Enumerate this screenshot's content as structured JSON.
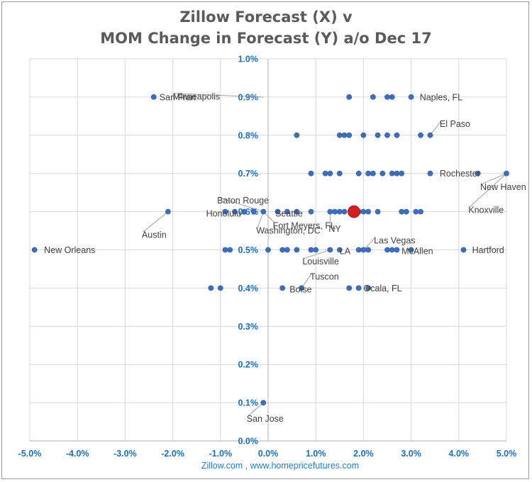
{
  "title_line1": "Zillow Forecast (X) v",
  "title_line2": "MOM Change in Forecast (Y) a/o Dec 17",
  "footer": "Zillow.com ,  www.homepricefutures.com",
  "chart_data": {
    "type": "scatter",
    "xlabel": "",
    "ylabel": "",
    "xlim": [
      -5.0,
      5.0
    ],
    "ylim": [
      0.0,
      1.0
    ],
    "x_ticks": [
      -5,
      -4,
      -3,
      -2,
      -1,
      0,
      1,
      2,
      3,
      4,
      5
    ],
    "y_ticks": [
      0.0,
      0.1,
      0.2,
      0.3,
      0.4,
      0.5,
      0.6,
      0.7,
      0.8,
      0.9,
      1.0
    ],
    "x_tick_labels": [
      "-5.0%",
      "-4.0%",
      "-3.0%",
      "-2.0%",
      "-1.0%",
      "0.0%",
      "1.0%",
      "2.0%",
      "3.0%",
      "4.0%",
      "5.0%"
    ],
    "y_tick_labels": [
      "0.0%",
      "0.1%",
      "0.2%",
      "0.3%",
      "0.4%",
      "0.5%",
      "0.6%",
      "0.7%",
      "0.8%",
      "0.9%",
      "1.0%"
    ],
    "grid": true,
    "colors": {
      "point": "#3f6fba",
      "highlight": "#d42020",
      "tick_label": "#1a6fc0",
      "grid": "#d9d9d9",
      "label": "#404040"
    },
    "highlight_point": {
      "x": 1.8,
      "y": 0.6
    },
    "points": [
      {
        "x": -2.4,
        "y": 0.9
      },
      {
        "x": 1.7,
        "y": 0.9
      },
      {
        "x": 2.2,
        "y": 0.9
      },
      {
        "x": 2.5,
        "y": 0.9
      },
      {
        "x": 2.6,
        "y": 0.9
      },
      {
        "x": 3.0,
        "y": 0.9
      },
      {
        "x": 0.6,
        "y": 0.8
      },
      {
        "x": 1.5,
        "y": 0.8
      },
      {
        "x": 1.6,
        "y": 0.8
      },
      {
        "x": 1.7,
        "y": 0.8
      },
      {
        "x": 2.0,
        "y": 0.8
      },
      {
        "x": 2.3,
        "y": 0.8
      },
      {
        "x": 2.5,
        "y": 0.8
      },
      {
        "x": 2.7,
        "y": 0.8
      },
      {
        "x": 3.2,
        "y": 0.8
      },
      {
        "x": 3.4,
        "y": 0.8
      },
      {
        "x": 0.9,
        "y": 0.7
      },
      {
        "x": 1.2,
        "y": 0.7
      },
      {
        "x": 1.3,
        "y": 0.7
      },
      {
        "x": 1.5,
        "y": 0.7
      },
      {
        "x": 1.9,
        "y": 0.7
      },
      {
        "x": 2.1,
        "y": 0.7
      },
      {
        "x": 2.2,
        "y": 0.7
      },
      {
        "x": 2.4,
        "y": 0.7
      },
      {
        "x": 2.6,
        "y": 0.7
      },
      {
        "x": 2.7,
        "y": 0.7
      },
      {
        "x": 2.8,
        "y": 0.7
      },
      {
        "x": 3.4,
        "y": 0.7
      },
      {
        "x": 4.4,
        "y": 0.7
      },
      {
        "x": 5.0,
        "y": 0.7
      },
      {
        "x": -2.1,
        "y": 0.6
      },
      {
        "x": -0.9,
        "y": 0.6
      },
      {
        "x": -0.7,
        "y": 0.6
      },
      {
        "x": -0.5,
        "y": 0.6
      },
      {
        "x": -0.3,
        "y": 0.6
      },
      {
        "x": -0.1,
        "y": 0.6
      },
      {
        "x": 0.2,
        "y": 0.6
      },
      {
        "x": 0.4,
        "y": 0.6
      },
      {
        "x": 0.6,
        "y": 0.6
      },
      {
        "x": 0.9,
        "y": 0.6
      },
      {
        "x": 1.3,
        "y": 0.6
      },
      {
        "x": 1.4,
        "y": 0.6
      },
      {
        "x": 1.5,
        "y": 0.6
      },
      {
        "x": 1.6,
        "y": 0.6
      },
      {
        "x": 1.9,
        "y": 0.6
      },
      {
        "x": 2.0,
        "y": 0.6
      },
      {
        "x": 2.1,
        "y": 0.6
      },
      {
        "x": 2.3,
        "y": 0.6
      },
      {
        "x": 2.8,
        "y": 0.6
      },
      {
        "x": 2.9,
        "y": 0.6
      },
      {
        "x": 3.1,
        "y": 0.6
      },
      {
        "x": 3.2,
        "y": 0.6
      },
      {
        "x": -4.9,
        "y": 0.5
      },
      {
        "x": -0.9,
        "y": 0.5
      },
      {
        "x": -0.8,
        "y": 0.5
      },
      {
        "x": 0.0,
        "y": 0.5
      },
      {
        "x": 0.3,
        "y": 0.5
      },
      {
        "x": 0.4,
        "y": 0.5
      },
      {
        "x": 0.6,
        "y": 0.5
      },
      {
        "x": 0.9,
        "y": 0.5
      },
      {
        "x": 1.0,
        "y": 0.5
      },
      {
        "x": 1.3,
        "y": 0.5
      },
      {
        "x": 1.5,
        "y": 0.5
      },
      {
        "x": 1.9,
        "y": 0.5
      },
      {
        "x": 2.0,
        "y": 0.5
      },
      {
        "x": 2.1,
        "y": 0.5
      },
      {
        "x": 2.5,
        "y": 0.5
      },
      {
        "x": 2.6,
        "y": 0.5
      },
      {
        "x": 2.7,
        "y": 0.5
      },
      {
        "x": 3.0,
        "y": 0.5
      },
      {
        "x": 4.1,
        "y": 0.5
      },
      {
        "x": -1.2,
        "y": 0.4
      },
      {
        "x": -1.0,
        "y": 0.4
      },
      {
        "x": 0.3,
        "y": 0.4
      },
      {
        "x": 0.7,
        "y": 0.4
      },
      {
        "x": 1.7,
        "y": 0.4
      },
      {
        "x": 1.9,
        "y": 0.4
      },
      {
        "x": 2.1,
        "y": 0.4
      },
      {
        "x": -0.1,
        "y": 0.1
      }
    ],
    "annotations": [
      {
        "text": "San Fran",
        "x": -2.4,
        "y": 0.9,
        "label_x": -2.28,
        "label_y": 0.9,
        "anchor": "start",
        "leader": false
      },
      {
        "text": "Minneapolis",
        "x": -0.1,
        "y": 0.9,
        "label_x": -2.0,
        "label_y": 0.902,
        "anchor": "start",
        "leader": true
      },
      {
        "text": "Naples, FL",
        "x": 3.0,
        "y": 0.9,
        "label_x": 3.18,
        "label_y": 0.9,
        "anchor": "start",
        "leader": false
      },
      {
        "text": "El Paso",
        "x": 3.4,
        "y": 0.8,
        "label_x": 3.6,
        "label_y": 0.83,
        "anchor": "start",
        "leader": true
      },
      {
        "text": "Rochester",
        "x": 4.4,
        "y": 0.7,
        "label_x": 3.6,
        "label_y": 0.7,
        "anchor": "start",
        "leader": false
      },
      {
        "text": "New Haven",
        "x": 5.0,
        "y": 0.7,
        "label_x": 4.45,
        "label_y": 0.665,
        "anchor": "start",
        "leader": true
      },
      {
        "text": "Knoxville",
        "x": 5.0,
        "y": 0.7,
        "label_x": 4.2,
        "label_y": 0.605,
        "anchor": "start",
        "leader": true
      },
      {
        "text": "Baton Rouge",
        "x": -0.1,
        "y": 0.6,
        "label_x": -1.07,
        "label_y": 0.63,
        "anchor": "start",
        "leader": true
      },
      {
        "text": "Honolulu",
        "x": -0.9,
        "y": 0.6,
        "label_x": -1.3,
        "label_y": 0.596,
        "anchor": "start",
        "leader": false
      },
      {
        "text": "Seattle",
        "x": -0.3,
        "y": 0.6,
        "label_x": 0.15,
        "label_y": 0.596,
        "anchor": "start",
        "leader": false
      },
      {
        "text": "Fort Meyers, FL",
        "x": -0.1,
        "y": 0.6,
        "label_x": 0.1,
        "label_y": 0.564,
        "anchor": "start",
        "leader": true
      },
      {
        "text": "Washington, DC",
        "x": -0.1,
        "y": 0.6,
        "label_x": -0.25,
        "label_y": 0.551,
        "anchor": "start",
        "leader": true
      },
      {
        "text": "NY",
        "x": 1.3,
        "y": 0.6,
        "label_x": 1.27,
        "label_y": 0.556,
        "anchor": "start",
        "leader": true
      },
      {
        "text": "Austin",
        "x": -2.1,
        "y": 0.6,
        "label_x": -2.65,
        "label_y": 0.54,
        "anchor": "start",
        "leader": true
      },
      {
        "text": "Las Vegas",
        "x": 2.0,
        "y": 0.5,
        "label_x": 2.22,
        "label_y": 0.525,
        "anchor": "start",
        "leader": true
      },
      {
        "text": "McAllen",
        "x": 2.7,
        "y": 0.5,
        "label_x": 2.8,
        "label_y": 0.497,
        "anchor": "start",
        "leader": false
      },
      {
        "text": "LA",
        "x": 1.5,
        "y": 0.5,
        "label_x": 1.5,
        "label_y": 0.497,
        "anchor": "start",
        "leader": false
      },
      {
        "text": "Louisville",
        "x": 1.3,
        "y": 0.5,
        "label_x": 0.72,
        "label_y": 0.47,
        "anchor": "start",
        "leader": true
      },
      {
        "text": "New Orleans",
        "x": -4.9,
        "y": 0.5,
        "label_x": -4.7,
        "label_y": 0.5,
        "anchor": "start",
        "leader": false
      },
      {
        "text": "Hartford",
        "x": 4.1,
        "y": 0.5,
        "label_x": 4.28,
        "label_y": 0.5,
        "anchor": "start",
        "leader": false
      },
      {
        "text": "Tuscon",
        "x": 0.7,
        "y": 0.4,
        "label_x": 0.88,
        "label_y": 0.43,
        "anchor": "start",
        "leader": true
      },
      {
        "text": "Boise",
        "x": 0.3,
        "y": 0.4,
        "label_x": 0.45,
        "label_y": 0.397,
        "anchor": "start",
        "leader": false
      },
      {
        "text": "Ocala, FL",
        "x": 2.1,
        "y": 0.4,
        "label_x": 2.0,
        "label_y": 0.4,
        "anchor": "start",
        "leader": false
      },
      {
        "text": "San Jose",
        "x": -0.1,
        "y": 0.1,
        "label_x": -0.45,
        "label_y": 0.058,
        "anchor": "start",
        "leader": true
      }
    ]
  }
}
